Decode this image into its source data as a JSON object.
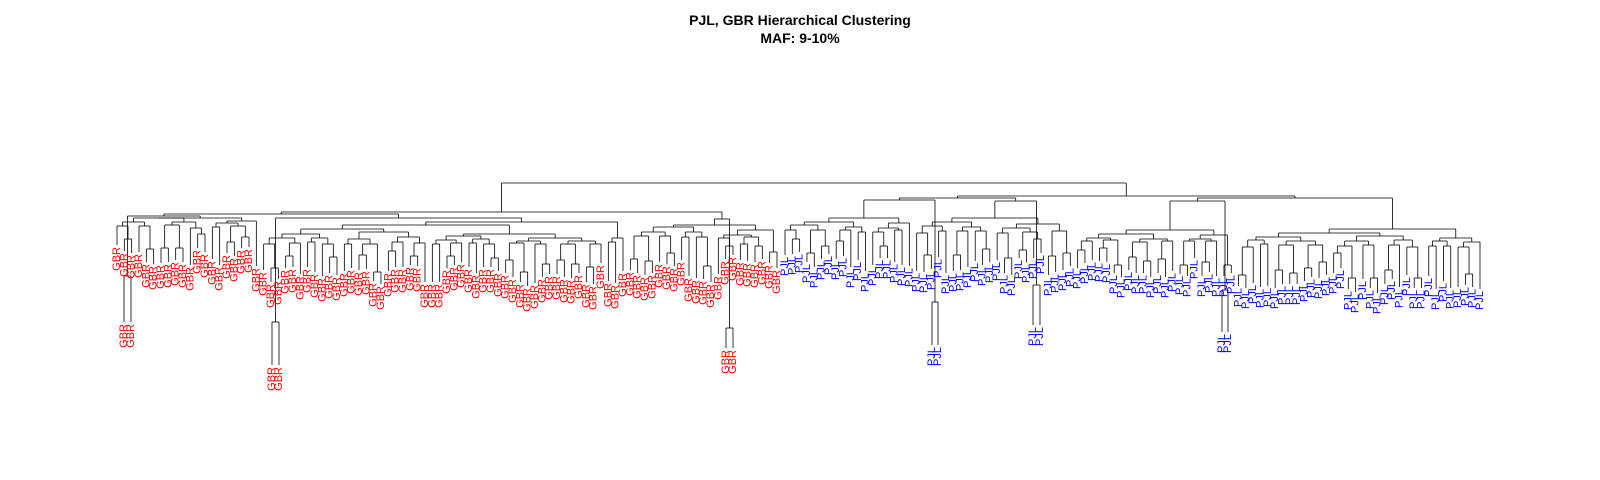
{
  "title": {
    "line1": "PJL, GBR Hierarchical Clustering",
    "line2": "MAF: 9-10%"
  },
  "colors": {
    "background": "#ffffff",
    "branch": "#000000",
    "GBR": "#ff0000",
    "PJL": "#0000ff"
  },
  "groups": [
    {
      "label": "GBR",
      "count": 91,
      "color": "#ff0000"
    },
    {
      "label": "PJL",
      "count": 96,
      "color": "#0000ff"
    }
  ]
}
